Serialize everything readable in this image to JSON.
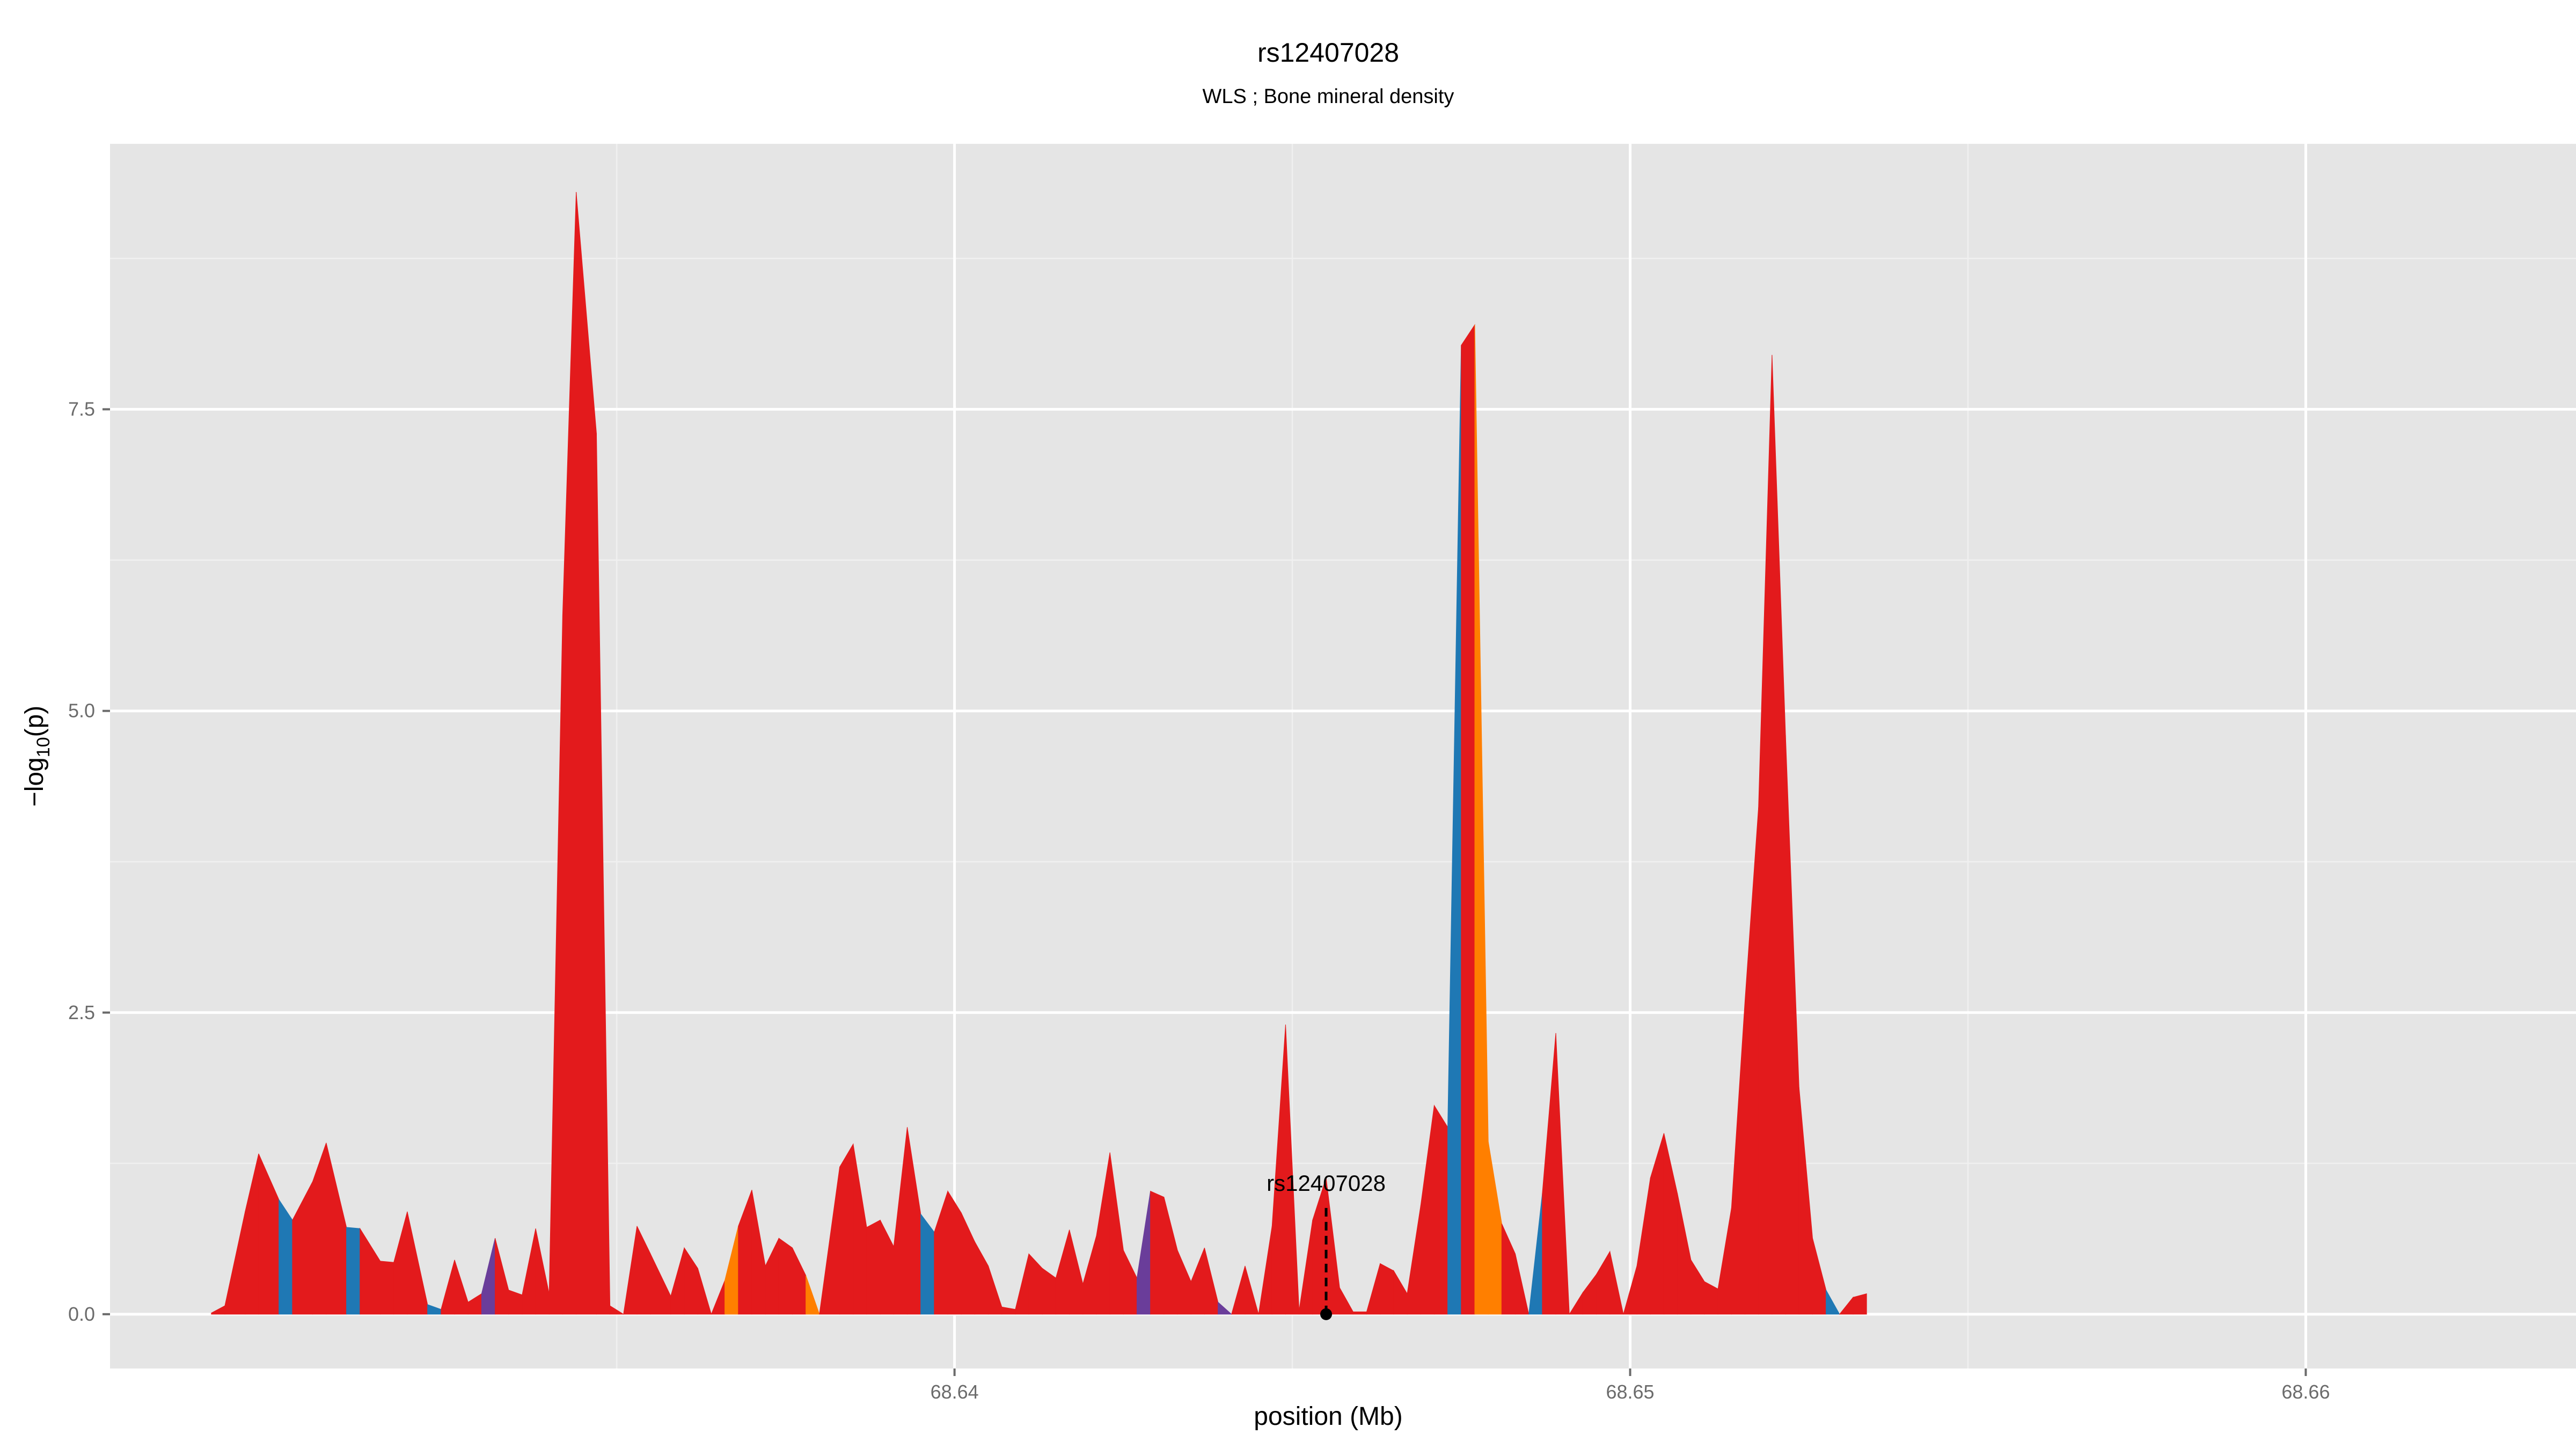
{
  "chart_data": {
    "type": "area",
    "title": "rs12407028",
    "subtitle": "WLS ; Bone mineral density",
    "xlabel": "position (Mb)",
    "ylabel_main": "−log",
    "ylabel_sub": "10",
    "ylabel_tail": "(p)",
    "xlim": [
      68.6275,
      68.664
    ],
    "ylim": [
      -0.45,
      9.7
    ],
    "x_ticks": [
      68.64,
      68.65,
      68.66
    ],
    "x_tick_labels": [
      "68.64",
      "68.65",
      "68.66"
    ],
    "y_ticks": [
      0.0,
      2.5,
      5.0,
      7.5
    ],
    "y_tick_labels": [
      "0.0",
      "2.5",
      "5.0",
      "7.5"
    ],
    "grid": true,
    "colors": {
      "panel_bg": "#e5e5e5",
      "grid_major": "#ffffff",
      "grid_minor": "#f0f0f0",
      "red": "#e31a1c",
      "blue": "#1f78b4",
      "purple": "#6a3d9a",
      "orange": "#ff7f00"
    },
    "annotation": {
      "label": "rs12407028",
      "x": 68.6455,
      "y": 0
    },
    "points": [
      [
        68.629,
        0.01
      ],
      [
        68.6292,
        0.07
      ],
      [
        68.6295,
        0.85
      ],
      [
        68.6297,
        1.33
      ],
      [
        68.63,
        0.95
      ],
      [
        68.6302,
        0.78
      ],
      [
        68.6305,
        1.1
      ],
      [
        68.6307,
        1.42
      ],
      [
        68.631,
        0.72
      ],
      [
        68.6312,
        0.71
      ],
      [
        68.6315,
        0.44
      ],
      [
        68.6317,
        0.43
      ],
      [
        68.6319,
        0.85
      ],
      [
        68.6322,
        0.08
      ],
      [
        68.6324,
        0.04
      ],
      [
        68.6326,
        0.45
      ],
      [
        68.6328,
        0.1
      ],
      [
        68.633,
        0.17
      ],
      [
        68.6332,
        0.63
      ],
      [
        68.6334,
        0.2
      ],
      [
        68.6336,
        0.16
      ],
      [
        68.6338,
        0.71
      ],
      [
        68.634,
        0.17
      ],
      [
        68.6342,
        5.8
      ],
      [
        68.6344,
        9.3
      ],
      [
        68.6347,
        7.3
      ],
      [
        68.6349,
        0.07
      ],
      [
        68.6351,
        0.0
      ],
      [
        68.6353,
        0.73
      ],
      [
        68.6355,
        0.5
      ],
      [
        68.6358,
        0.15
      ],
      [
        68.636,
        0.55
      ],
      [
        68.6362,
        0.38
      ],
      [
        68.6364,
        0.0
      ],
      [
        68.6366,
        0.28
      ],
      [
        68.6368,
        0.73
      ],
      [
        68.637,
        1.03
      ],
      [
        68.6372,
        0.4
      ],
      [
        68.6374,
        0.63
      ],
      [
        68.6376,
        0.55
      ],
      [
        68.6378,
        0.32
      ],
      [
        68.638,
        0.0
      ],
      [
        68.6383,
        1.22
      ],
      [
        68.6385,
        1.41
      ],
      [
        68.6387,
        0.72
      ],
      [
        68.6389,
        0.78
      ],
      [
        68.6391,
        0.56
      ],
      [
        68.6393,
        1.55
      ],
      [
        68.6395,
        0.83
      ],
      [
        68.6397,
        0.68
      ],
      [
        68.6399,
        1.02
      ],
      [
        68.6401,
        0.84
      ],
      [
        68.6403,
        0.6
      ],
      [
        68.6405,
        0.4
      ],
      [
        68.6407,
        0.06
      ],
      [
        68.6409,
        0.04
      ],
      [
        68.6411,
        0.5
      ],
      [
        68.6413,
        0.38
      ],
      [
        68.6415,
        0.3
      ],
      [
        68.6417,
        0.7
      ],
      [
        68.6419,
        0.25
      ],
      [
        68.6421,
        0.65
      ],
      [
        68.6423,
        1.34
      ],
      [
        68.6425,
        0.53
      ],
      [
        68.6427,
        0.3
      ],
      [
        68.6429,
        1.02
      ],
      [
        68.6431,
        0.97
      ],
      [
        68.6433,
        0.53
      ],
      [
        68.6435,
        0.27
      ],
      [
        68.6437,
        0.55
      ],
      [
        68.6439,
        0.1
      ],
      [
        68.6441,
        0.0
      ],
      [
        68.6443,
        0.4
      ],
      [
        68.6445,
        0.0
      ],
      [
        68.6447,
        0.73
      ],
      [
        68.6449,
        2.4
      ],
      [
        68.6451,
        0.03
      ],
      [
        68.6453,
        0.78
      ],
      [
        68.6455,
        1.13
      ],
      [
        68.6457,
        0.22
      ],
      [
        68.6459,
        0.02
      ],
      [
        68.6461,
        0.02
      ],
      [
        68.6463,
        0.42
      ],
      [
        68.6465,
        0.36
      ],
      [
        68.6467,
        0.17
      ],
      [
        68.6469,
        0.9
      ],
      [
        68.6471,
        1.73
      ],
      [
        68.6473,
        1.55
      ],
      [
        68.6475,
        8.03
      ],
      [
        68.6477,
        8.2
      ],
      [
        68.6479,
        1.43
      ],
      [
        68.6481,
        0.75
      ],
      [
        68.6483,
        0.5
      ],
      [
        68.6485,
        0.0
      ],
      [
        68.6487,
        1.0
      ],
      [
        68.6489,
        2.33
      ],
      [
        68.6491,
        0.0
      ],
      [
        68.6493,
        0.18
      ],
      [
        68.6495,
        0.33
      ],
      [
        68.6497,
        0.52
      ],
      [
        68.6499,
        0.0
      ],
      [
        68.6501,
        0.4
      ],
      [
        68.6503,
        1.13
      ],
      [
        68.6505,
        1.5
      ],
      [
        68.6507,
        1.0
      ],
      [
        68.6509,
        0.45
      ],
      [
        68.6511,
        0.27
      ],
      [
        68.6513,
        0.21
      ],
      [
        68.6515,
        0.88
      ],
      [
        68.6517,
        2.6
      ],
      [
        68.6519,
        4.2
      ],
      [
        68.6521,
        7.95
      ],
      [
        68.6523,
        4.8
      ],
      [
        68.6525,
        1.88
      ],
      [
        68.6527,
        0.63
      ],
      [
        68.6529,
        0.2
      ],
      [
        68.6531,
        0.0
      ],
      [
        68.6533,
        0.14
      ],
      [
        68.6535,
        0.17
      ]
    ],
    "segment_colors": [
      "red",
      "red",
      "red",
      "red",
      "blue",
      "red",
      "red",
      "red",
      "blue",
      "red",
      "red",
      "red",
      "red",
      "blue",
      "red",
      "red",
      "red",
      "purple",
      "red",
      "red",
      "red",
      "red",
      "red",
      "red",
      "red",
      "red",
      "red",
      "red",
      "red",
      "red",
      "red",
      "red",
      "red",
      "red",
      "orange",
      "red",
      "red",
      "red",
      "red",
      "red",
      "orange",
      "red",
      "red",
      "red",
      "red",
      "red",
      "red",
      "red",
      "blue",
      "red",
      "red",
      "red",
      "red",
      "red",
      "red",
      "red",
      "red",
      "red",
      "red",
      "red",
      "red",
      "red",
      "red",
      "red",
      "purple",
      "red",
      "red",
      "red",
      "red",
      "red",
      "purple",
      "red",
      "red",
      "red",
      "red",
      "red",
      "red",
      "red",
      "red",
      "red",
      "red",
      "red",
      "red",
      "red",
      "red",
      "red",
      "red",
      "blue",
      "red",
      "orange",
      "orange",
      "red",
      "red",
      "blue",
      "red",
      "red",
      "red",
      "red",
      "red",
      "red",
      "red",
      "red",
      "red",
      "red",
      "red",
      "red",
      "red",
      "red",
      "red",
      "red",
      "red",
      "red",
      "red",
      "red",
      "red",
      "blue",
      "red",
      "red",
      "red"
    ]
  }
}
